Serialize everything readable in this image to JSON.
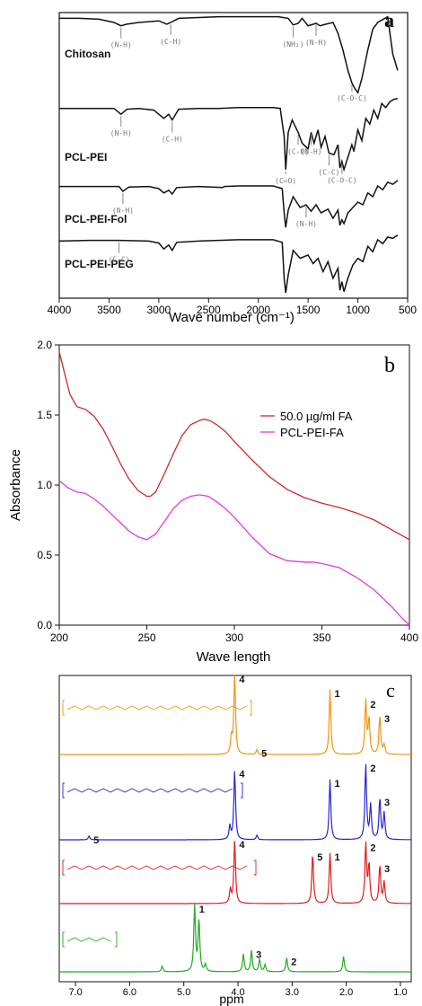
{
  "chart_data": [
    {
      "type": "line",
      "panel_label": "a",
      "xlabel": "Wave number (cm⁻¹)",
      "ylabel": "",
      "xlim": [
        4000,
        500
      ],
      "x_reversed": true,
      "xticks": [
        "4000",
        "3500",
        "3000",
        "2500",
        "2000",
        "1500",
        "1000",
        "500"
      ],
      "grid": false,
      "legend": "none",
      "series": [
        {
          "name": "Chitosan",
          "color": "#111111",
          "x": [
            4000,
            3800,
            3600,
            3450,
            3380,
            3320,
            3200,
            3000,
            2920,
            2880,
            2800,
            2600,
            2400,
            2200,
            2000,
            1800,
            1700,
            1650,
            1600,
            1560,
            1500,
            1420,
            1380,
            1320,
            1250,
            1200,
            1150,
            1100,
            1060,
            1030,
            1000,
            960,
            900,
            850,
            800,
            700,
            650,
            600
          ],
          "y": [
            0.93,
            0.93,
            0.92,
            0.88,
            0.84,
            0.86,
            0.88,
            0.9,
            0.86,
            0.88,
            0.93,
            0.94,
            0.95,
            0.95,
            0.95,
            0.95,
            0.93,
            0.85,
            0.87,
            0.93,
            0.84,
            0.87,
            0.84,
            0.86,
            0.88,
            0.75,
            0.55,
            0.3,
            0.15,
            0.08,
            0.03,
            0.2,
            0.55,
            0.8,
            0.88,
            0.95,
            0.5,
            0.3
          ]
        },
        {
          "name": "PCL-PEI",
          "color": "#111111",
          "x": [
            4000,
            3700,
            3450,
            3380,
            3320,
            3200,
            3050,
            2950,
            2900,
            2865,
            2800,
            2600,
            2400,
            2200,
            2000,
            1850,
            1780,
            1740,
            1725,
            1700,
            1660,
            1600,
            1560,
            1500,
            1470,
            1440,
            1400,
            1370,
            1330,
            1290,
            1240,
            1200,
            1180,
            1160,
            1140,
            1100,
            1060,
            1040,
            1000,
            960,
            920,
            880,
            840,
            800,
            760,
            720,
            680,
            640,
            600
          ],
          "y": [
            0.84,
            0.84,
            0.84,
            0.77,
            0.83,
            0.84,
            0.82,
            0.72,
            0.77,
            0.7,
            0.83,
            0.84,
            0.84,
            0.85,
            0.85,
            0.85,
            0.84,
            0.5,
            0.1,
            0.55,
            0.7,
            0.55,
            0.42,
            0.35,
            0.55,
            0.42,
            0.58,
            0.37,
            0.5,
            0.3,
            0.28,
            0.4,
            0.12,
            0.2,
            0.1,
            0.25,
            0.4,
            0.32,
            0.58,
            0.45,
            0.72,
            0.65,
            0.82,
            0.72,
            0.9,
            0.85,
            0.92,
            0.95,
            0.96
          ]
        },
        {
          "name": "PCL-PEI-Fol",
          "color": "#111111",
          "x": [
            4000,
            3700,
            3400,
            3360,
            3300,
            3100,
            3000,
            2950,
            2900,
            2865,
            2820,
            2600,
            2360,
            2340,
            2200,
            2000,
            1850,
            1760,
            1740,
            1725,
            1700,
            1650,
            1580,
            1520,
            1470,
            1420,
            1370,
            1300,
            1250,
            1200,
            1180,
            1160,
            1140,
            1100,
            1050,
            1000,
            950,
            900,
            850,
            800,
            750,
            700,
            650,
            600
          ],
          "y": [
            0.84,
            0.84,
            0.84,
            0.75,
            0.83,
            0.84,
            0.8,
            0.72,
            0.77,
            0.7,
            0.82,
            0.84,
            0.82,
            0.84,
            0.85,
            0.85,
            0.85,
            0.8,
            0.35,
            0.08,
            0.4,
            0.65,
            0.45,
            0.5,
            0.38,
            0.5,
            0.35,
            0.42,
            0.25,
            0.4,
            0.12,
            0.22,
            0.15,
            0.35,
            0.45,
            0.55,
            0.5,
            0.72,
            0.65,
            0.85,
            0.78,
            0.92,
            0.88,
            0.95
          ]
        },
        {
          "name": "PCL-PEI-PEG",
          "color": "#111111",
          "x": [
            4000,
            3700,
            3400,
            3100,
            3000,
            2950,
            2900,
            2865,
            2820,
            2600,
            2400,
            2200,
            2000,
            1850,
            1760,
            1740,
            1725,
            1700,
            1650,
            1580,
            1500,
            1450,
            1400,
            1350,
            1300,
            1250,
            1200,
            1180,
            1160,
            1140,
            1100,
            1050,
            1000,
            950,
            900,
            850,
            800,
            750,
            700,
            650,
            600
          ],
          "y": [
            0.86,
            0.87,
            0.87,
            0.86,
            0.83,
            0.74,
            0.8,
            0.72,
            0.84,
            0.86,
            0.87,
            0.88,
            0.88,
            0.88,
            0.84,
            0.3,
            0.08,
            0.35,
            0.72,
            0.6,
            0.65,
            0.52,
            0.6,
            0.4,
            0.55,
            0.3,
            0.45,
            0.12,
            0.25,
            0.1,
            0.3,
            0.5,
            0.6,
            0.55,
            0.78,
            0.7,
            0.88,
            0.82,
            0.92,
            0.9,
            0.95
          ]
        }
      ],
      "annotations": [
        {
          "text": "(N-H)",
          "series": "Chitosan",
          "x": 3380
        },
        {
          "text": "(C-H)",
          "series": "Chitosan",
          "x": 2880
        },
        {
          "text": "(NH₂)",
          "series": "Chitosan",
          "x": 1650
        },
        {
          "text": "(N-H)",
          "series": "Chitosan",
          "x": 1420
        },
        {
          "text": "(C-O-C)",
          "series": "Chitosan",
          "x": 1060
        },
        {
          "text": "(N-H)",
          "series": "PCL-PEI",
          "x": 3380
        },
        {
          "text": "(C-H)",
          "series": "PCL-PEI",
          "x": 2865
        },
        {
          "text": "(C=O)",
          "series": "PCL-PEI",
          "x": 1725
        },
        {
          "text": "(C-O)",
          "series": "PCL-PEI",
          "x": 1600
        },
        {
          "text": "(N-H)",
          "series": "PCL-PEI",
          "x": 1470
        },
        {
          "text": "(C-C)",
          "series": "PCL-PEI",
          "x": 1290
        },
        {
          "text": "(C-O-C)",
          "series": "PCL-PEI",
          "x": 1160
        },
        {
          "text": "(N-H)",
          "series": "PCL-PEI-Fol",
          "x": 3360
        },
        {
          "text": "(N-H)",
          "series": "PCL-PEI-Fol",
          "x": 1520
        },
        {
          "text": "(C-C)",
          "series": "PCL-PEI-PEG",
          "x": 3400
        }
      ]
    },
    {
      "type": "line",
      "panel_label": "b",
      "xlabel": "Wave length",
      "ylabel": "Absorbance",
      "xlim": [
        200,
        400
      ],
      "ylim": [
        0,
        2.0
      ],
      "xticks": [
        "200",
        "250",
        "300",
        "350",
        "400"
      ],
      "yticks": [
        "0.0",
        "0.5",
        "1.0",
        "1.5",
        "2.0"
      ],
      "grid": false,
      "legend": "top-right",
      "series": [
        {
          "name": "50.0 µg/ml FA",
          "color": "#cc2a2a",
          "x": [
            200,
            203,
            206,
            210,
            215,
            220,
            225,
            230,
            235,
            240,
            245,
            250,
            252,
            255,
            260,
            265,
            270,
            275,
            280,
            283,
            286,
            290,
            295,
            300,
            310,
            320,
            330,
            340,
            350,
            360,
            370,
            380,
            390,
            400
          ],
          "y": [
            1.95,
            1.8,
            1.65,
            1.56,
            1.54,
            1.49,
            1.4,
            1.28,
            1.15,
            1.04,
            0.96,
            0.92,
            0.92,
            0.95,
            1.08,
            1.22,
            1.35,
            1.43,
            1.46,
            1.47,
            1.46,
            1.43,
            1.38,
            1.31,
            1.18,
            1.06,
            0.97,
            0.91,
            0.87,
            0.84,
            0.8,
            0.75,
            0.68,
            0.61
          ]
        },
        {
          "name": "PCL-PEI-FA",
          "color": "#e03ae0",
          "x": [
            200,
            205,
            210,
            215,
            220,
            225,
            230,
            235,
            240,
            245,
            250,
            255,
            260,
            265,
            270,
            275,
            280,
            285,
            290,
            295,
            300,
            310,
            320,
            330,
            340,
            345,
            350,
            360,
            370,
            380,
            390,
            395,
            400
          ],
          "y": [
            1.03,
            0.98,
            0.95,
            0.94,
            0.9,
            0.85,
            0.79,
            0.73,
            0.67,
            0.63,
            0.61,
            0.65,
            0.74,
            0.83,
            0.89,
            0.92,
            0.93,
            0.92,
            0.88,
            0.83,
            0.77,
            0.63,
            0.51,
            0.46,
            0.45,
            0.45,
            0.44,
            0.41,
            0.34,
            0.25,
            0.13,
            0.06,
            0.0
          ]
        }
      ]
    },
    {
      "type": "line",
      "panel_label": "c",
      "xlabel": "ppm",
      "ylabel": "",
      "xlim": [
        7.3,
        0.8
      ],
      "x_reversed": true,
      "xticks": [
        "7.0",
        "6.0",
        "5.0",
        "4.0",
        "3.0",
        "2.0",
        "1.0"
      ],
      "grid": false,
      "legend": "none",
      "series": [
        {
          "name": "",
          "color": "#f0950f",
          "peaks": [
            {
              "ppm": 4.06,
              "h": 1.0,
              "label": "4"
            },
            {
              "ppm": 4.12,
              "h": 0.22,
              "label": ""
            },
            {
              "ppm": 3.65,
              "h": 0.06,
              "label": "5"
            },
            {
              "ppm": 2.3,
              "h": 0.82,
              "label": "1"
            },
            {
              "ppm": 1.64,
              "h": 0.68,
              "label": "2"
            },
            {
              "ppm": 1.58,
              "h": 0.45,
              "label": ""
            },
            {
              "ppm": 1.38,
              "h": 0.5,
              "label": "3"
            },
            {
              "ppm": 1.3,
              "h": 0.12,
              "label": ""
            }
          ]
        },
        {
          "name": "",
          "color": "#2424d8",
          "peaks": [
            {
              "ppm": 6.75,
              "h": 0.05,
              "label": "5"
            },
            {
              "ppm": 4.06,
              "h": 0.92,
              "label": "4"
            },
            {
              "ppm": 4.15,
              "h": 0.18,
              "label": ""
            },
            {
              "ppm": 3.65,
              "h": 0.06,
              "label": ""
            },
            {
              "ppm": 2.3,
              "h": 0.8,
              "label": "1"
            },
            {
              "ppm": 1.64,
              "h": 1.0,
              "label": "2"
            },
            {
              "ppm": 1.55,
              "h": 0.45,
              "label": ""
            },
            {
              "ppm": 1.38,
              "h": 0.55,
              "label": "3"
            },
            {
              "ppm": 1.3,
              "h": 0.35,
              "label": ""
            }
          ]
        },
        {
          "name": "",
          "color": "#e01c1c",
          "peaks": [
            {
              "ppm": 4.06,
              "h": 0.9,
              "label": "4"
            },
            {
              "ppm": 4.14,
              "h": 0.2,
              "label": ""
            },
            {
              "ppm": 2.62,
              "h": 0.72,
              "label": "5"
            },
            {
              "ppm": 2.3,
              "h": 0.72,
              "label": "1"
            },
            {
              "ppm": 1.64,
              "h": 0.85,
              "label": "2"
            },
            {
              "ppm": 1.58,
              "h": 0.55,
              "label": ""
            },
            {
              "ppm": 1.38,
              "h": 0.55,
              "label": "3"
            },
            {
              "ppm": 1.3,
              "h": 0.3,
              "label": ""
            }
          ]
        },
        {
          "name": "",
          "color": "#22aa22",
          "peaks": [
            {
              "ppm": 5.4,
              "h": 0.08,
              "label": ""
            },
            {
              "ppm": 4.8,
              "h": 0.95,
              "label": "1"
            },
            {
              "ppm": 4.72,
              "h": 0.75,
              "label": ""
            },
            {
              "ppm": 4.6,
              "h": 0.1,
              "label": ""
            },
            {
              "ppm": 3.9,
              "h": 0.25,
              "label": ""
            },
            {
              "ppm": 3.75,
              "h": 0.3,
              "label": "3"
            },
            {
              "ppm": 3.6,
              "h": 0.18,
              "label": ""
            },
            {
              "ppm": 3.5,
              "h": 0.1,
              "label": ""
            },
            {
              "ppm": 3.1,
              "h": 0.2,
              "label": "2"
            },
            {
              "ppm": 2.05,
              "h": 0.22,
              "label": ""
            }
          ]
        }
      ]
    }
  ]
}
